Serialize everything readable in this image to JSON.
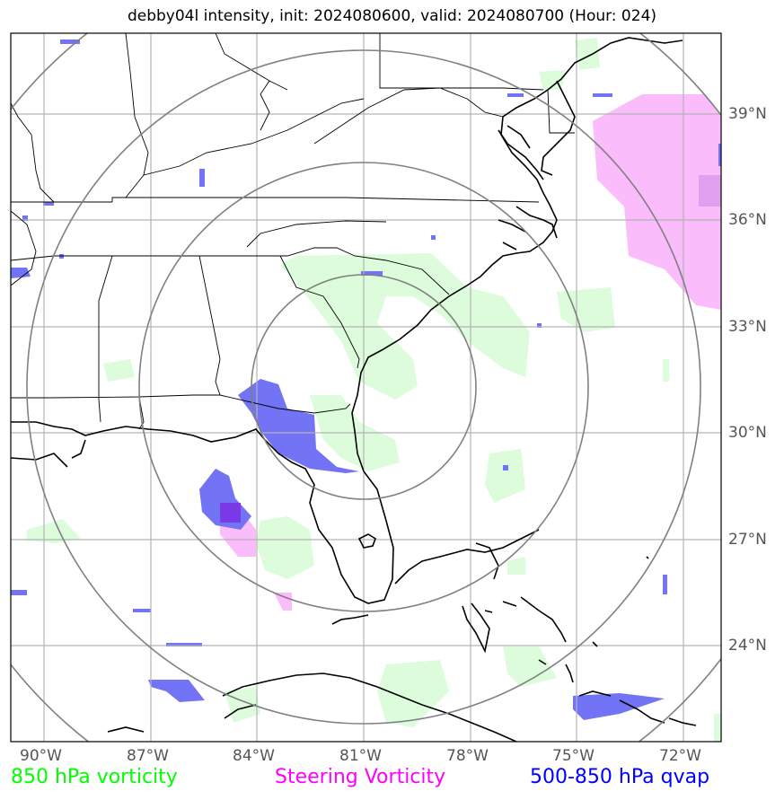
{
  "title": "debby04l intensity, init: 2024080600, valid: 2024080700 (Hour: 024)",
  "x_ticks": [
    "90°W",
    "87°W",
    "84°W",
    "81°W",
    "78°W",
    "75°W",
    "72°W"
  ],
  "y_ticks": [
    "39°N",
    "36°N",
    "33°N",
    "30°N",
    "27°N",
    "24°N"
  ],
  "legend": [
    {
      "label": "850 hPa vorticity",
      "color": "#00ff00"
    },
    {
      "label": "Steering Vorticity",
      "color": "#ff00ff"
    },
    {
      "label": "500-850 hPa qvap",
      "color": "#0000ff"
    }
  ],
  "colors": {
    "vorticity_850": "#dcfcdc",
    "steering_vorticity": "#fbbcfb",
    "qvap": "#7373f5",
    "qvap_dark": "#7a3ae8",
    "range_rings": "#808080",
    "grid": "#b3b3b3",
    "coastline": "#000000"
  },
  "map": {
    "lon_range": [
      -91,
      -71
    ],
    "lat_range": [
      21.5,
      41.5
    ],
    "storm_center": {
      "lon": -81.0,
      "lat": 31.3
    },
    "range_ring_radii_deg": [
      3,
      6,
      9
    ],
    "projection": "PlateCarree"
  }
}
